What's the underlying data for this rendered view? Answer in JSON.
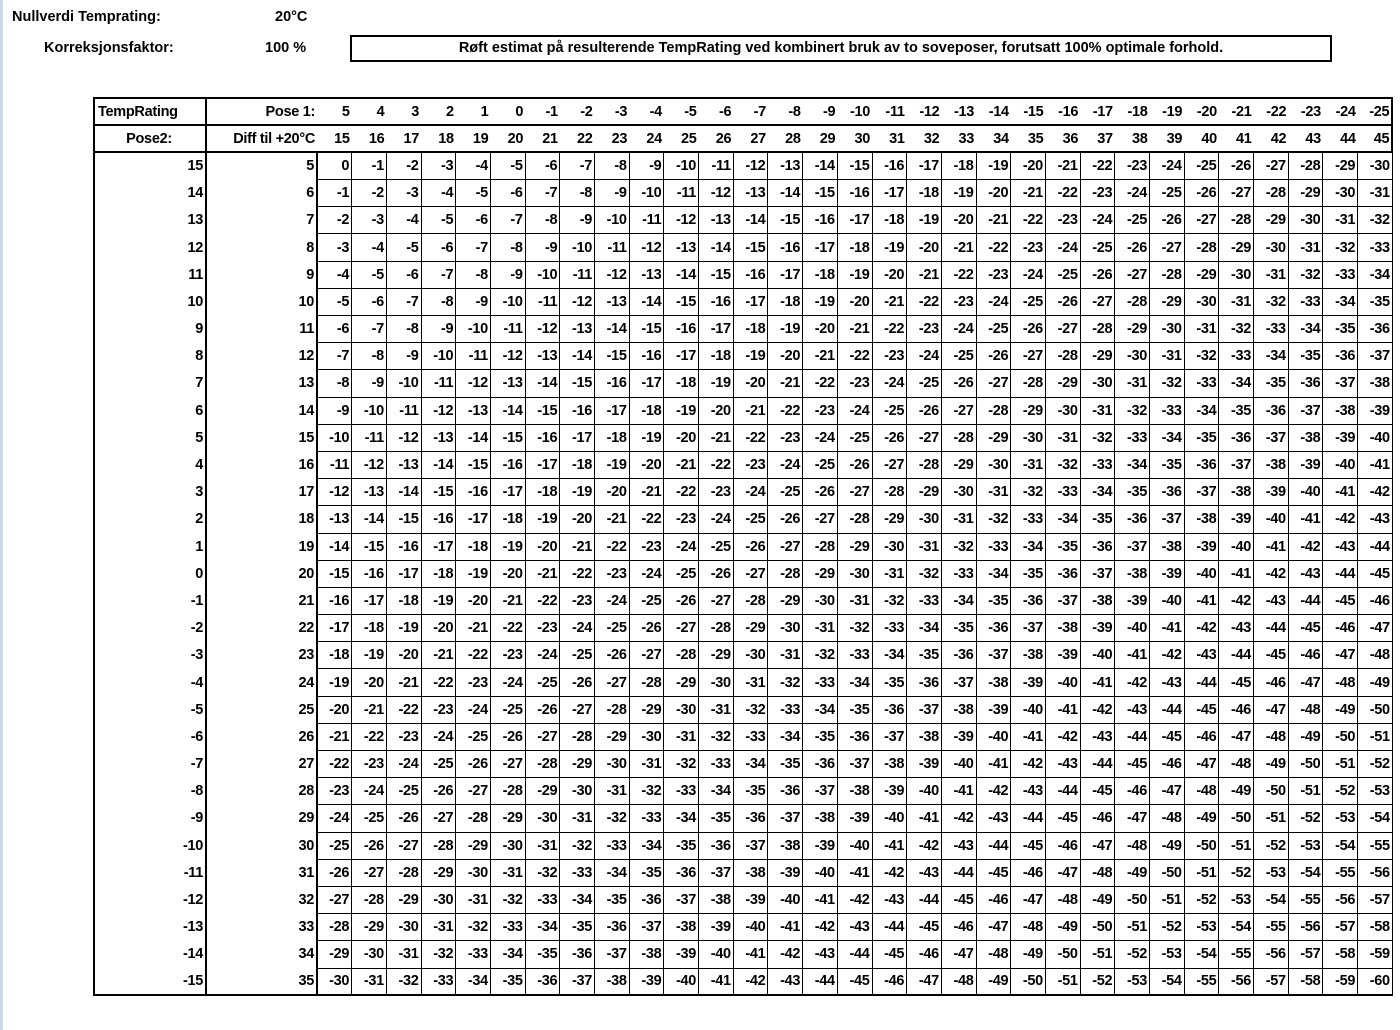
{
  "settings": {
    "nullverdi_label": "Nullverdi Temprating:",
    "nullverdi_value": "20°C",
    "korreksjon_label": "Korreksjonsfaktor:",
    "korreksjon_value": "100 %",
    "note": "Røft estimat på resulterende TempRating ved kombinert bruk av to soveposer, forutsatt 100% optimale forhold."
  },
  "table": {
    "corner_label": "TempRating",
    "pose1_label": "Pose 1:",
    "pose2_label": "Pose2:",
    "diff_label": "Diff til +20°C",
    "pose1": [
      5,
      4,
      3,
      2,
      1,
      0,
      -1,
      -2,
      -3,
      -4,
      -5,
      -6,
      -7,
      -8,
      -9,
      -10,
      -11,
      -12,
      -13,
      -14,
      -15,
      -16,
      -17,
      -18,
      -19,
      -20,
      -21,
      -22,
      -23,
      -24,
      -25
    ],
    "pose1_diff": [
      15,
      16,
      17,
      18,
      19,
      20,
      21,
      22,
      23,
      24,
      25,
      26,
      27,
      28,
      29,
      30,
      31,
      32,
      33,
      34,
      35,
      36,
      37,
      38,
      39,
      40,
      41,
      42,
      43,
      44,
      45
    ],
    "pose2": [
      15,
      14,
      13,
      12,
      11,
      10,
      9,
      8,
      7,
      6,
      5,
      4,
      3,
      2,
      1,
      0,
      -1,
      -2,
      -3,
      -4,
      -5,
      -6,
      -7,
      -8,
      -9,
      -10,
      -11,
      -12,
      -13,
      -14,
      -15
    ],
    "pose2_diff": [
      5,
      6,
      7,
      8,
      9,
      10,
      11,
      12,
      13,
      14,
      15,
      16,
      17,
      18,
      19,
      20,
      21,
      22,
      23,
      24,
      25,
      26,
      27,
      28,
      29,
      30,
      31,
      32,
      33,
      34,
      35
    ],
    "cells": [
      [
        0,
        -1,
        -2,
        -3,
        -4,
        -5,
        -6,
        -7,
        -8,
        -9,
        -10,
        -11,
        -12,
        -13,
        -14,
        -15,
        -16,
        -17,
        -18,
        -19,
        -20,
        -21,
        -22,
        -23,
        -24,
        -25,
        -26,
        -27,
        -28,
        -29,
        -30
      ],
      [
        -1,
        -2,
        -3,
        -4,
        -5,
        -6,
        -7,
        -8,
        -9,
        -10,
        -11,
        -12,
        -13,
        -14,
        -15,
        -16,
        -17,
        -18,
        -19,
        -20,
        -21,
        -22,
        -23,
        -24,
        -25,
        -26,
        -27,
        -28,
        -29,
        -30,
        -31
      ],
      [
        -2,
        -3,
        -4,
        -5,
        -6,
        -7,
        -8,
        -9,
        -10,
        -11,
        -12,
        -13,
        -14,
        -15,
        -16,
        -17,
        -18,
        -19,
        -20,
        -21,
        -22,
        -23,
        -24,
        -25,
        -26,
        -27,
        -28,
        -29,
        -30,
        -31,
        -32
      ],
      [
        -3,
        -4,
        -5,
        -6,
        -7,
        -8,
        -9,
        -10,
        -11,
        -12,
        -13,
        -14,
        -15,
        -16,
        -17,
        -18,
        -19,
        -20,
        -21,
        -22,
        -23,
        -24,
        -25,
        -26,
        -27,
        -28,
        -29,
        -30,
        -31,
        -32,
        -33
      ],
      [
        -4,
        -5,
        -6,
        -7,
        -8,
        -9,
        -10,
        -11,
        -12,
        -13,
        -14,
        -15,
        -16,
        -17,
        -18,
        -19,
        -20,
        -21,
        -22,
        -23,
        -24,
        -25,
        -26,
        -27,
        -28,
        -29,
        -30,
        -31,
        -32,
        -33,
        -34
      ],
      [
        -5,
        -6,
        -7,
        -8,
        -9,
        -10,
        -11,
        -12,
        -13,
        -14,
        -15,
        -16,
        -17,
        -18,
        -19,
        -20,
        -21,
        -22,
        -23,
        -24,
        -25,
        -26,
        -27,
        -28,
        -29,
        -30,
        -31,
        -32,
        -33,
        -34,
        -35
      ],
      [
        -6,
        -7,
        -8,
        -9,
        -10,
        -11,
        -12,
        -13,
        -14,
        -15,
        -16,
        -17,
        -18,
        -19,
        -20,
        -21,
        -22,
        -23,
        -24,
        -25,
        -26,
        -27,
        -28,
        -29,
        -30,
        -31,
        -32,
        -33,
        -34,
        -35,
        -36
      ],
      [
        -7,
        -8,
        -9,
        -10,
        -11,
        -12,
        -13,
        -14,
        -15,
        -16,
        -17,
        -18,
        -19,
        -20,
        -21,
        -22,
        -23,
        -24,
        -25,
        -26,
        -27,
        -28,
        -29,
        -30,
        -31,
        -32,
        -33,
        -34,
        -35,
        -36,
        -37
      ],
      [
        -8,
        -9,
        -10,
        -11,
        -12,
        -13,
        -14,
        -15,
        -16,
        -17,
        -18,
        -19,
        -20,
        -21,
        -22,
        -23,
        -24,
        -25,
        -26,
        -27,
        -28,
        -29,
        -30,
        -31,
        -32,
        -33,
        -34,
        -35,
        -36,
        -37,
        -38
      ],
      [
        -9,
        -10,
        -11,
        -12,
        -13,
        -14,
        -15,
        -16,
        -17,
        -18,
        -19,
        -20,
        -21,
        -22,
        -23,
        -24,
        -25,
        -26,
        -27,
        -28,
        -29,
        -30,
        -31,
        -32,
        -33,
        -34,
        -35,
        -36,
        -37,
        -38,
        -39
      ],
      [
        -10,
        -11,
        -12,
        -13,
        -14,
        -15,
        -16,
        -17,
        -18,
        -19,
        -20,
        -21,
        -22,
        -23,
        -24,
        -25,
        -26,
        -27,
        -28,
        -29,
        -30,
        -31,
        -32,
        -33,
        -34,
        -35,
        -36,
        -37,
        -38,
        -39,
        -40
      ],
      [
        -11,
        -12,
        -13,
        -14,
        -15,
        -16,
        -17,
        -18,
        -19,
        -20,
        -21,
        -22,
        -23,
        -24,
        -25,
        -26,
        -27,
        -28,
        -29,
        -30,
        -31,
        -32,
        -33,
        -34,
        -35,
        -36,
        -37,
        -38,
        -39,
        -40,
        -41
      ],
      [
        -12,
        -13,
        -14,
        -15,
        -16,
        -17,
        -18,
        -19,
        -20,
        -21,
        -22,
        -23,
        -24,
        -25,
        -26,
        -27,
        -28,
        -29,
        -30,
        -31,
        -32,
        -33,
        -34,
        -35,
        -36,
        -37,
        -38,
        -39,
        -40,
        -41,
        -42
      ],
      [
        -13,
        -14,
        -15,
        -16,
        -17,
        -18,
        -19,
        -20,
        -21,
        -22,
        -23,
        -24,
        -25,
        -26,
        -27,
        -28,
        -29,
        -30,
        -31,
        -32,
        -33,
        -34,
        -35,
        -36,
        -37,
        -38,
        -39,
        -40,
        -41,
        -42,
        -43
      ],
      [
        -14,
        -15,
        -16,
        -17,
        -18,
        -19,
        -20,
        -21,
        -22,
        -23,
        -24,
        -25,
        -26,
        -27,
        -28,
        -29,
        -30,
        -31,
        -32,
        -33,
        -34,
        -35,
        -36,
        -37,
        -38,
        -39,
        -40,
        -41,
        -42,
        -43,
        -44
      ],
      [
        -15,
        -16,
        -17,
        -18,
        -19,
        -20,
        -21,
        -22,
        -23,
        -24,
        -25,
        -26,
        -27,
        -28,
        -29,
        -30,
        -31,
        -32,
        -33,
        -34,
        -35,
        -36,
        -37,
        -38,
        -39,
        -40,
        -41,
        -42,
        -43,
        -44,
        -45
      ],
      [
        -16,
        -17,
        -18,
        -19,
        -20,
        -21,
        -22,
        -23,
        -24,
        -25,
        -26,
        -27,
        -28,
        -29,
        -30,
        -31,
        -32,
        -33,
        -34,
        -35,
        -36,
        -37,
        -38,
        -39,
        -40,
        -41,
        -42,
        -43,
        -44,
        -45,
        -46
      ],
      [
        -17,
        -18,
        -19,
        -20,
        -21,
        -22,
        -23,
        -24,
        -25,
        -26,
        -27,
        -28,
        -29,
        -30,
        -31,
        -32,
        -33,
        -34,
        -35,
        -36,
        -37,
        -38,
        -39,
        -40,
        -41,
        -42,
        -43,
        -44,
        -45,
        -46,
        -47
      ],
      [
        -18,
        -19,
        -20,
        -21,
        -22,
        -23,
        -24,
        -25,
        -26,
        -27,
        -28,
        -29,
        -30,
        -31,
        -32,
        -33,
        -34,
        -35,
        -36,
        -37,
        -38,
        -39,
        -40,
        -41,
        -42,
        -43,
        -44,
        -45,
        -46,
        -47,
        -48
      ],
      [
        -19,
        -20,
        -21,
        -22,
        -23,
        -24,
        -25,
        -26,
        -27,
        -28,
        -29,
        -30,
        -31,
        -32,
        -33,
        -34,
        -35,
        -36,
        -37,
        -38,
        -39,
        -40,
        -41,
        -42,
        -43,
        -44,
        -45,
        -46,
        -47,
        -48,
        -49
      ],
      [
        -20,
        -21,
        -22,
        -23,
        -24,
        -25,
        -26,
        -27,
        -28,
        -29,
        -30,
        -31,
        -32,
        -33,
        -34,
        -35,
        -36,
        -37,
        -38,
        -39,
        -40,
        -41,
        -42,
        -43,
        -44,
        -45,
        -46,
        -47,
        -48,
        -49,
        -50
      ],
      [
        -21,
        -22,
        -23,
        -24,
        -25,
        -26,
        -27,
        -28,
        -29,
        -30,
        -31,
        -32,
        -33,
        -34,
        -35,
        -36,
        -37,
        -38,
        -39,
        -40,
        -41,
        -42,
        -43,
        -44,
        -45,
        -46,
        -47,
        -48,
        -49,
        -50,
        -51
      ],
      [
        -22,
        -23,
        -24,
        -25,
        -26,
        -27,
        -28,
        -29,
        -30,
        -31,
        -32,
        -33,
        -34,
        -35,
        -36,
        -37,
        -38,
        -39,
        -40,
        -41,
        -42,
        -43,
        -44,
        -45,
        -46,
        -47,
        -48,
        -49,
        -50,
        -51,
        -52
      ],
      [
        -23,
        -24,
        -25,
        -26,
        -27,
        -28,
        -29,
        -30,
        -31,
        -32,
        -33,
        -34,
        -35,
        -36,
        -37,
        -38,
        -39,
        -40,
        -41,
        -42,
        -43,
        -44,
        -45,
        -46,
        -47,
        -48,
        -49,
        -50,
        -51,
        -52,
        -53
      ],
      [
        -24,
        -25,
        -26,
        -27,
        -28,
        -29,
        -30,
        -31,
        -32,
        -33,
        -34,
        -35,
        -36,
        -37,
        -38,
        -39,
        -40,
        -41,
        -42,
        -43,
        -44,
        -45,
        -46,
        -47,
        -48,
        -49,
        -50,
        -51,
        -52,
        -53,
        -54
      ],
      [
        -25,
        -26,
        -27,
        -28,
        -29,
        -30,
        -31,
        -32,
        -33,
        -34,
        -35,
        -36,
        -37,
        -38,
        -39,
        -40,
        -41,
        -42,
        -43,
        -44,
        -45,
        -46,
        -47,
        -48,
        -49,
        -50,
        -51,
        -52,
        -53,
        -54,
        -55
      ],
      [
        -26,
        -27,
        -28,
        -29,
        -30,
        -31,
        -32,
        -33,
        -34,
        -35,
        -36,
        -37,
        -38,
        -39,
        -40,
        -41,
        -42,
        -43,
        -44,
        -45,
        -46,
        -47,
        -48,
        -49,
        -50,
        -51,
        -52,
        -53,
        -54,
        -55,
        -56
      ],
      [
        -27,
        -28,
        -29,
        -30,
        -31,
        -32,
        -33,
        -34,
        -35,
        -36,
        -37,
        -38,
        -39,
        -40,
        -41,
        -42,
        -43,
        -44,
        -45,
        -46,
        -47,
        -48,
        -49,
        -50,
        -51,
        -52,
        -53,
        -54,
        -55,
        -56,
        -57
      ],
      [
        -28,
        -29,
        -30,
        -31,
        -32,
        -33,
        -34,
        -35,
        -36,
        -37,
        -38,
        -39,
        -40,
        -41,
        -42,
        -43,
        -44,
        -45,
        -46,
        -47,
        -48,
        -49,
        -50,
        -51,
        -52,
        -53,
        -54,
        -55,
        -56,
        -57,
        -58
      ],
      [
        -29,
        -30,
        -31,
        -32,
        -33,
        -34,
        -35,
        -36,
        -37,
        -38,
        -39,
        -40,
        -41,
        -42,
        -43,
        -44,
        -45,
        -46,
        -47,
        -48,
        -49,
        -50,
        -51,
        -52,
        -53,
        -54,
        -55,
        -56,
        -57,
        -58,
        -59
      ],
      [
        -30,
        -31,
        -32,
        -33,
        -34,
        -35,
        -36,
        -37,
        -38,
        -39,
        -40,
        -41,
        -42,
        -43,
        -44,
        -45,
        -46,
        -47,
        -48,
        -49,
        -50,
        -51,
        -52,
        -53,
        -54,
        -55,
        -56,
        -57,
        -58,
        -59,
        -60
      ]
    ]
  }
}
